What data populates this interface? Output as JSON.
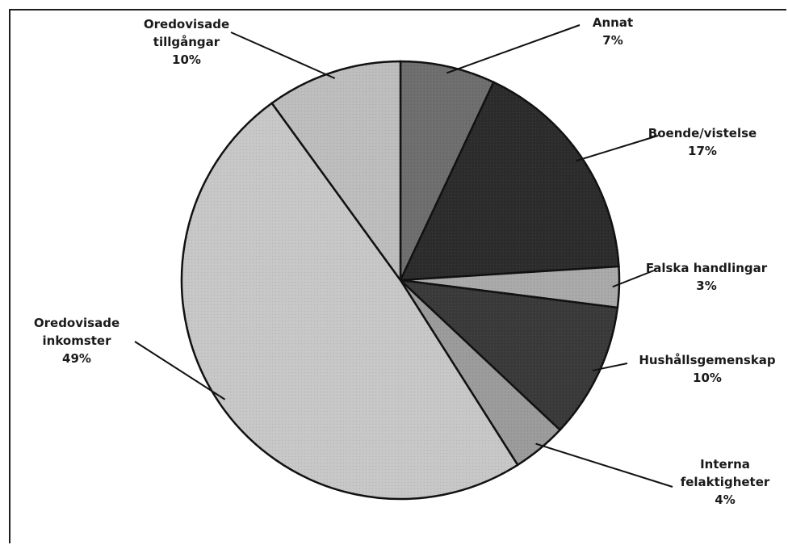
{
  "chart_data": {
    "type": "pie",
    "start_angle_deg": 0,
    "direction": "clockwise",
    "slices": [
      {
        "name": "Annat",
        "value": 7,
        "label_lines": [
          "Annat",
          "7%"
        ],
        "color": "#6e6e6e"
      },
      {
        "name": "Boende/vistelse",
        "value": 17,
        "label_lines": [
          "Boende/vistelse",
          "17%"
        ],
        "color": "#2c2c2c"
      },
      {
        "name": "Falska handlingar",
        "value": 3,
        "label_lines": [
          "Falska handlingar",
          "3%"
        ],
        "color": "#a9a9a9"
      },
      {
        "name": "Hushållsgemenskap",
        "value": 10,
        "label_lines": [
          "Hushållsgemenskap",
          "10%"
        ],
        "color": "#3a3a3a"
      },
      {
        "name": "Interna felaktigheter",
        "value": 4,
        "label_lines": [
          "Interna",
          "felaktigheter",
          "4%"
        ],
        "color": "#9b9b9b"
      },
      {
        "name": "Oredovisade inkomster",
        "value": 49,
        "label_lines": [
          "Oredovisade",
          "inkomster",
          "49%"
        ],
        "color": "#c7c7c7"
      },
      {
        "name": "Oredovisade tillgångar",
        "value": 10,
        "label_lines": [
          "Oredovisade",
          "tillgångar",
          "10%"
        ],
        "color": "#bdbdbd"
      }
    ]
  }
}
